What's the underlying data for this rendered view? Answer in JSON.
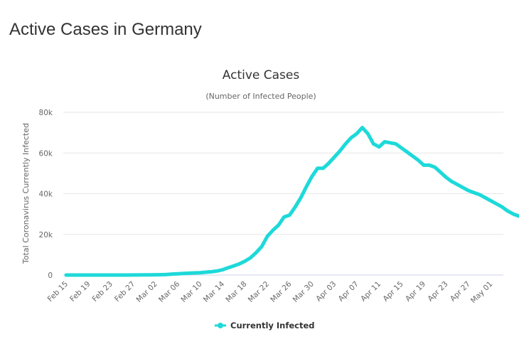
{
  "page": {
    "title": "Active Cases in Germany"
  },
  "chart_data": {
    "type": "line",
    "title": "Active Cases",
    "subtitle": "(Number of Infected People)",
    "xlabel": "",
    "ylabel": "Total Coronavirus Currently Infected",
    "ylim": [
      0,
      80000
    ],
    "yticks": [
      0,
      20000,
      40000,
      60000,
      80000
    ],
    "ytick_labels": [
      "0",
      "20k",
      "40k",
      "60k",
      "80k"
    ],
    "xtick_labels": [
      "Feb 15",
      "Feb 19",
      "Feb 23",
      "Feb 27",
      "Mar 02",
      "Mar 06",
      "Mar 10",
      "Mar 14",
      "Mar 18",
      "Mar 22",
      "Mar 26",
      "Mar 30",
      "Apr 03",
      "Apr 07",
      "Apr 11",
      "Apr 15",
      "Apr 19",
      "Apr 23",
      "Apr 27",
      "May 01"
    ],
    "grid": true,
    "legend": {
      "position": "bottom-center",
      "entries": [
        "Currently Infected"
      ]
    },
    "color": "#1ed9d9",
    "start_date": "Feb 15",
    "series": [
      {
        "name": "Currently Infected",
        "values": [
          14,
          14,
          14,
          14,
          14,
          14,
          14,
          14,
          14,
          14,
          14,
          14,
          30,
          40,
          60,
          100,
          130,
          170,
          250,
          500,
          620,
          780,
          900,
          1050,
          1150,
          1400,
          1600,
          2000,
          2600,
          3600,
          4500,
          5500,
          6800,
          8500,
          11000,
          14000,
          19000,
          22000,
          24500,
          28500,
          29500,
          33500,
          38000,
          43500,
          48500,
          52500,
          52500,
          55000,
          58000,
          61000,
          64500,
          67500,
          69500,
          72500,
          69500,
          64500,
          63000,
          65500,
          65000,
          64500,
          62500,
          60500,
          58500,
          56500,
          54000,
          54000,
          53000,
          50500,
          48000,
          46000,
          44500,
          43000,
          41500,
          40500,
          39500,
          38000,
          36500,
          35000,
          33500,
          31500,
          30000,
          29000
        ]
      }
    ]
  }
}
